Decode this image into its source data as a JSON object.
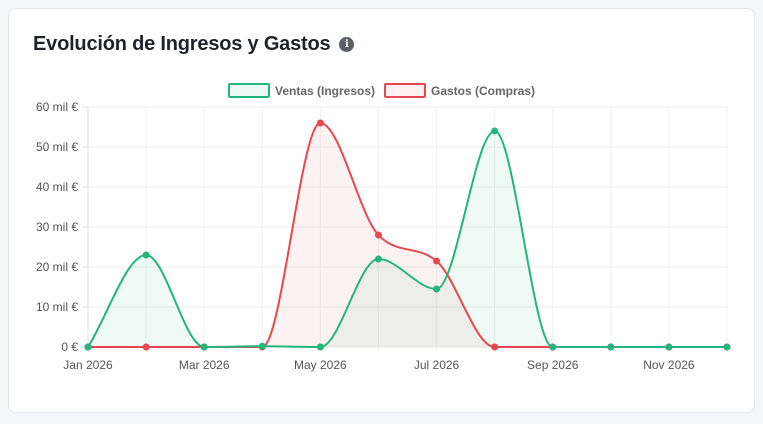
{
  "card": {
    "title": "Evolución de Ingresos y Gastos",
    "info_icon": "info-icon"
  },
  "colors": {
    "ventas": "#23b57c",
    "gastos": "#e5484d"
  },
  "chart_data": {
    "type": "area",
    "x": [
      "2026-01",
      "2026-02",
      "2026-03",
      "2026-04",
      "2026-05",
      "2026-06",
      "2026-07",
      "2026-08",
      "2026-09",
      "2026-10",
      "2026-11",
      "2026-12"
    ],
    "x_tick_labels": [
      "Jan 2026",
      "Mar 2026",
      "May 2026",
      "Jul 2026",
      "Sep 2026",
      "Nov 2026"
    ],
    "y_tick_labels": [
      "0 €",
      "10 mil €",
      "20 mil €",
      "30 mil €",
      "40 mil €",
      "50 mil €",
      "60 mil €"
    ],
    "ylim": [
      0,
      60000
    ],
    "grid": true,
    "legend_position": "top",
    "series": [
      {
        "name": "Ventas (Ingresos)",
        "color": "#23b57c",
        "values": [
          0,
          23000,
          0,
          200,
          0,
          22000,
          14500,
          54000,
          0,
          0,
          0,
          0
        ]
      },
      {
        "name": "Gastos (Compras)",
        "color": "#e5484d",
        "values": [
          0,
          0,
          0,
          0,
          56000,
          28000,
          21500,
          0,
          0,
          0,
          0,
          0
        ]
      }
    ]
  }
}
